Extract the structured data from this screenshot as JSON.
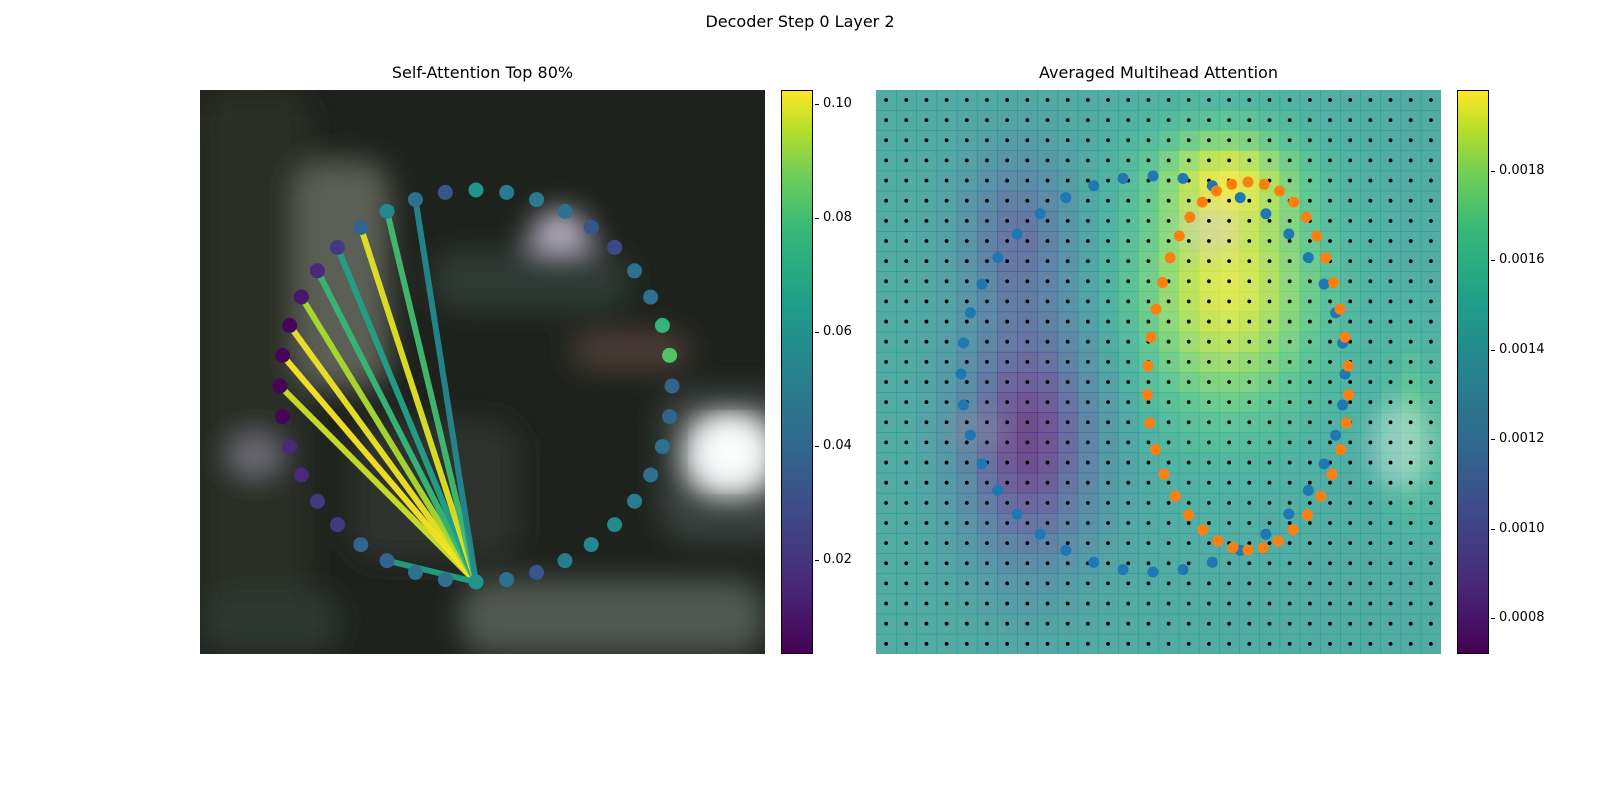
{
  "figure": {
    "suptitle": "Decoder Step 0 Layer 2"
  },
  "colors": {
    "viridis": [
      "#440154",
      "#482878",
      "#3e4a89",
      "#31688e",
      "#26828e",
      "#1f9e89",
      "#35b779",
      "#6ece58",
      "#b5de2b",
      "#fde725"
    ],
    "blue_points": "#1f77b4",
    "orange_points": "#ff7f0e",
    "grid_dots": "#000000"
  },
  "chart_data": [
    {
      "type": "scatter",
      "title": "Self-Attention Top 80%",
      "description_of_marks": "ring of 40 points colored by attention weight, with connecting lines to a query point",
      "colorbar": {
        "range": [
          0.0035,
          0.1025
        ],
        "ticks": [
          0.02,
          0.04,
          0.06,
          0.08,
          0.1
        ],
        "tick_labels": [
          "0.02",
          "0.04",
          "0.06",
          "0.08",
          "0.10"
        ],
        "colormap": "viridis"
      },
      "point_weights": [
        0.055,
        0.045,
        0.045,
        0.04,
        0.03,
        0.025,
        0.04,
        0.04,
        0.068,
        0.075,
        0.035,
        0.035,
        0.04,
        0.04,
        0.045,
        0.05,
        0.05,
        0.045,
        0.03,
        0.04,
        0.055,
        0.04,
        0.04,
        0.035,
        0.035,
        0.02,
        0.02,
        0.015,
        0.015,
        0.005,
        0.005,
        0.005,
        0.005,
        0.01,
        0.015,
        0.02,
        0.035,
        0.05,
        0.04,
        0.03
      ],
      "query_point_index": 20,
      "connections": [
        {
          "from": 30,
          "weight": 0.095
        },
        {
          "from": 31,
          "weight": 0.102
        },
        {
          "from": 32,
          "weight": 0.1
        },
        {
          "from": 33,
          "weight": 0.09
        },
        {
          "from": 34,
          "weight": 0.07
        },
        {
          "from": 35,
          "weight": 0.06
        },
        {
          "from": 36,
          "weight": 0.098
        },
        {
          "from": 37,
          "weight": 0.072
        },
        {
          "from": 38,
          "weight": 0.05
        },
        {
          "from": 23,
          "weight": 0.06
        }
      ]
    },
    {
      "type": "heatmap",
      "title": "Averaged Multihead Attention",
      "colorbar": {
        "range": [
          0.00072,
          0.00198
        ],
        "ticks": [
          0.0008,
          0.001,
          0.0012,
          0.0014,
          0.0016,
          0.0018
        ],
        "tick_labels": [
          "0.0008",
          "0.0010",
          "0.0012",
          "0.0014",
          "0.0016",
          "0.0018"
        ],
        "colormap": "viridis"
      },
      "grid": {
        "rows": 28,
        "cols": 28
      },
      "series": [
        {
          "name": "",
          "color": "#1f77b4",
          "count": 40
        },
        {
          "name": "",
          "color": "#ff7f0e",
          "count": 40
        }
      ]
    }
  ]
}
